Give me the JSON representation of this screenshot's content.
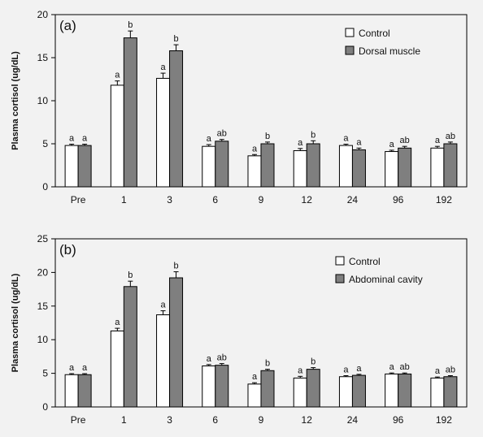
{
  "colors": {
    "background": "#f2f2f2",
    "control": "#ffffff",
    "treatment": "#7f7f7f",
    "axis": "#000000"
  },
  "chart_data": [
    {
      "type": "bar",
      "panel_label": "(a)",
      "ylabel": "Plasma cortisol (ug/dL)",
      "xlabel": "",
      "ylim": [
        0,
        20
      ],
      "yticks": [
        0,
        5,
        10,
        15,
        20
      ],
      "categories": [
        "Pre",
        "1",
        "3",
        "6",
        "9",
        "12",
        "24",
        "96",
        "192"
      ],
      "legend_position": "top-right",
      "series": [
        {
          "name": "Control",
          "color": "#ffffff",
          "values": [
            4.8,
            11.8,
            12.6,
            4.7,
            3.6,
            4.2,
            4.8,
            4.1,
            4.5
          ],
          "errors": [
            0.15,
            0.5,
            0.6,
            0.2,
            0.15,
            0.25,
            0.15,
            0.15,
            0.2
          ],
          "letters": [
            "a",
            "a",
            "a",
            "a",
            "a",
            "a",
            "a",
            "a",
            "a"
          ]
        },
        {
          "name": "Dorsal muscle",
          "color": "#7f7f7f",
          "values": [
            4.8,
            17.3,
            15.8,
            5.3,
            5.0,
            5.0,
            4.3,
            4.5,
            5.0
          ],
          "errors": [
            0.15,
            0.8,
            0.7,
            0.2,
            0.2,
            0.35,
            0.2,
            0.2,
            0.2
          ],
          "letters": [
            "a",
            "b",
            "b",
            "ab",
            "b",
            "b",
            "a",
            "ab",
            "ab"
          ]
        }
      ]
    },
    {
      "type": "bar",
      "panel_label": "(b)",
      "ylabel": "Plasma cortisol (ug/dL)",
      "xlabel": "",
      "ylim": [
        0,
        25
      ],
      "yticks": [
        0,
        5,
        10,
        15,
        20,
        25
      ],
      "categories": [
        "Pre",
        "1",
        "3",
        "6",
        "9",
        "12",
        "24",
        "96",
        "192"
      ],
      "legend_position": "top-right",
      "series": [
        {
          "name": "Control",
          "color": "#ffffff",
          "values": [
            4.8,
            11.3,
            13.7,
            6.1,
            3.4,
            4.3,
            4.5,
            4.9,
            4.3
          ],
          "errors": [
            0.15,
            0.4,
            0.6,
            0.2,
            0.2,
            0.25,
            0.15,
            0.15,
            0.15
          ],
          "letters": [
            "a",
            "a",
            "a",
            "a",
            "a",
            "a",
            "a",
            "a",
            "a"
          ]
        },
        {
          "name": "Abdominal cavity",
          "color": "#7f7f7f",
          "values": [
            4.8,
            17.9,
            19.2,
            6.2,
            5.4,
            5.6,
            4.7,
            4.9,
            4.5
          ],
          "errors": [
            0.15,
            0.8,
            0.9,
            0.25,
            0.2,
            0.25,
            0.15,
            0.15,
            0.15
          ],
          "letters": [
            "a",
            "b",
            "b",
            "ab",
            "b",
            "b",
            "a",
            "ab",
            "ab"
          ]
        }
      ]
    }
  ]
}
